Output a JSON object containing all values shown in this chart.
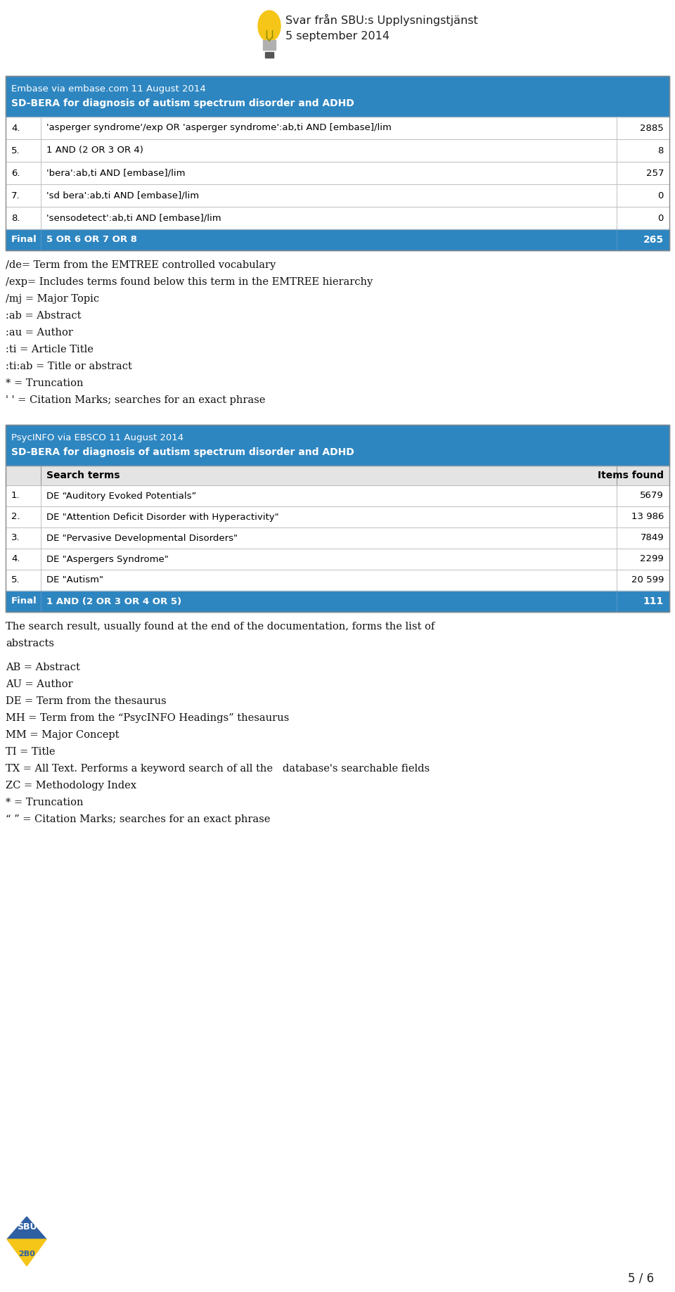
{
  "header_text_line1": "Svar från SBU:s Upplysningstjänst",
  "header_text_line2": "5 september 2014",
  "page_num": "5 / 6",
  "bg_color": "#ffffff",
  "table_header_bg": "#2E86C1",
  "table_final_bg": "#2E86C1",
  "embase_title": "Embase via embase.com 11 August 2014",
  "embase_subtitle": "SD-BERA for diagnosis of autism spectrum disorder and ADHD",
  "embase_rows": [
    {
      "num": "4.",
      "term": "'asperger syndrome'/exp OR 'asperger syndrome':ab,ti AND [embase]/lim",
      "count": "2885"
    },
    {
      "num": "5.",
      "term": "1 AND (2 OR 3 OR 4)",
      "count": "8"
    },
    {
      "num": "6.",
      "term": "'bera':ab,ti AND [embase]/lim",
      "count": "257"
    },
    {
      "num": "7.",
      "term": "'sd bera':ab,ti AND [embase]/lim",
      "count": "0"
    },
    {
      "num": "8.",
      "term": "'sensodetect':ab,ti AND [embase]/lim",
      "count": "0"
    }
  ],
  "embase_final": {
    "label": "Final",
    "term": "5 OR 6 OR 7 OR 8",
    "count": "265"
  },
  "embase_legend": [
    "/de= Term from the EMTREE controlled vocabulary",
    "/exp= Includes terms found below this term in the EMTREE hierarchy",
    "/mj = Major Topic",
    ":ab = Abstract",
    ":au = Author",
    ":ti = Article Title",
    ":ti:ab = Title or abstract",
    "* = Truncation",
    "' ' = Citation Marks; searches for an exact phrase"
  ],
  "psycinfo_title": "PsycINFO via EBSCO 11 August 2014",
  "psycinfo_subtitle": "SD-BERA for diagnosis of autism spectrum disorder and ADHD",
  "psycinfo_col1": "Search terms",
  "psycinfo_col2": "Items found",
  "psycinfo_rows": [
    {
      "num": "1.",
      "term": "DE “Auditory Evoked Potentials”",
      "count": "5679"
    },
    {
      "num": "2.",
      "term": "DE \"Attention Deficit Disorder with Hyperactivity\"",
      "count": "13 986"
    },
    {
      "num": "3.",
      "term": "DE \"Pervasive Developmental Disorders\"",
      "count": "7849"
    },
    {
      "num": "4.",
      "term": "DE \"Aspergers Syndrome\"",
      "count": "2299"
    },
    {
      "num": "5.",
      "term": "DE \"Autism\"",
      "count": "20 599"
    }
  ],
  "psycinfo_final": {
    "label": "Final",
    "term": "1 AND (2 OR 3 OR 4 OR 5)",
    "count": "111"
  },
  "psycinfo_legend": [
    "The search result, usually found at the end of the documentation, forms the list of",
    "abstracts",
    "",
    "AB = Abstract",
    "AU = Author",
    "DE = Term from the thesaurus",
    "MH = Term from the “PsycINFO Headings” thesaurus",
    "MM = Major Concept",
    "TI = Title",
    "TX = All Text. Performs a keyword search of all the   database's searchable fields",
    "ZC = Methodology Index",
    "* = Truncation",
    "“ ” = Citation Marks; searches for an exact phrase"
  ]
}
